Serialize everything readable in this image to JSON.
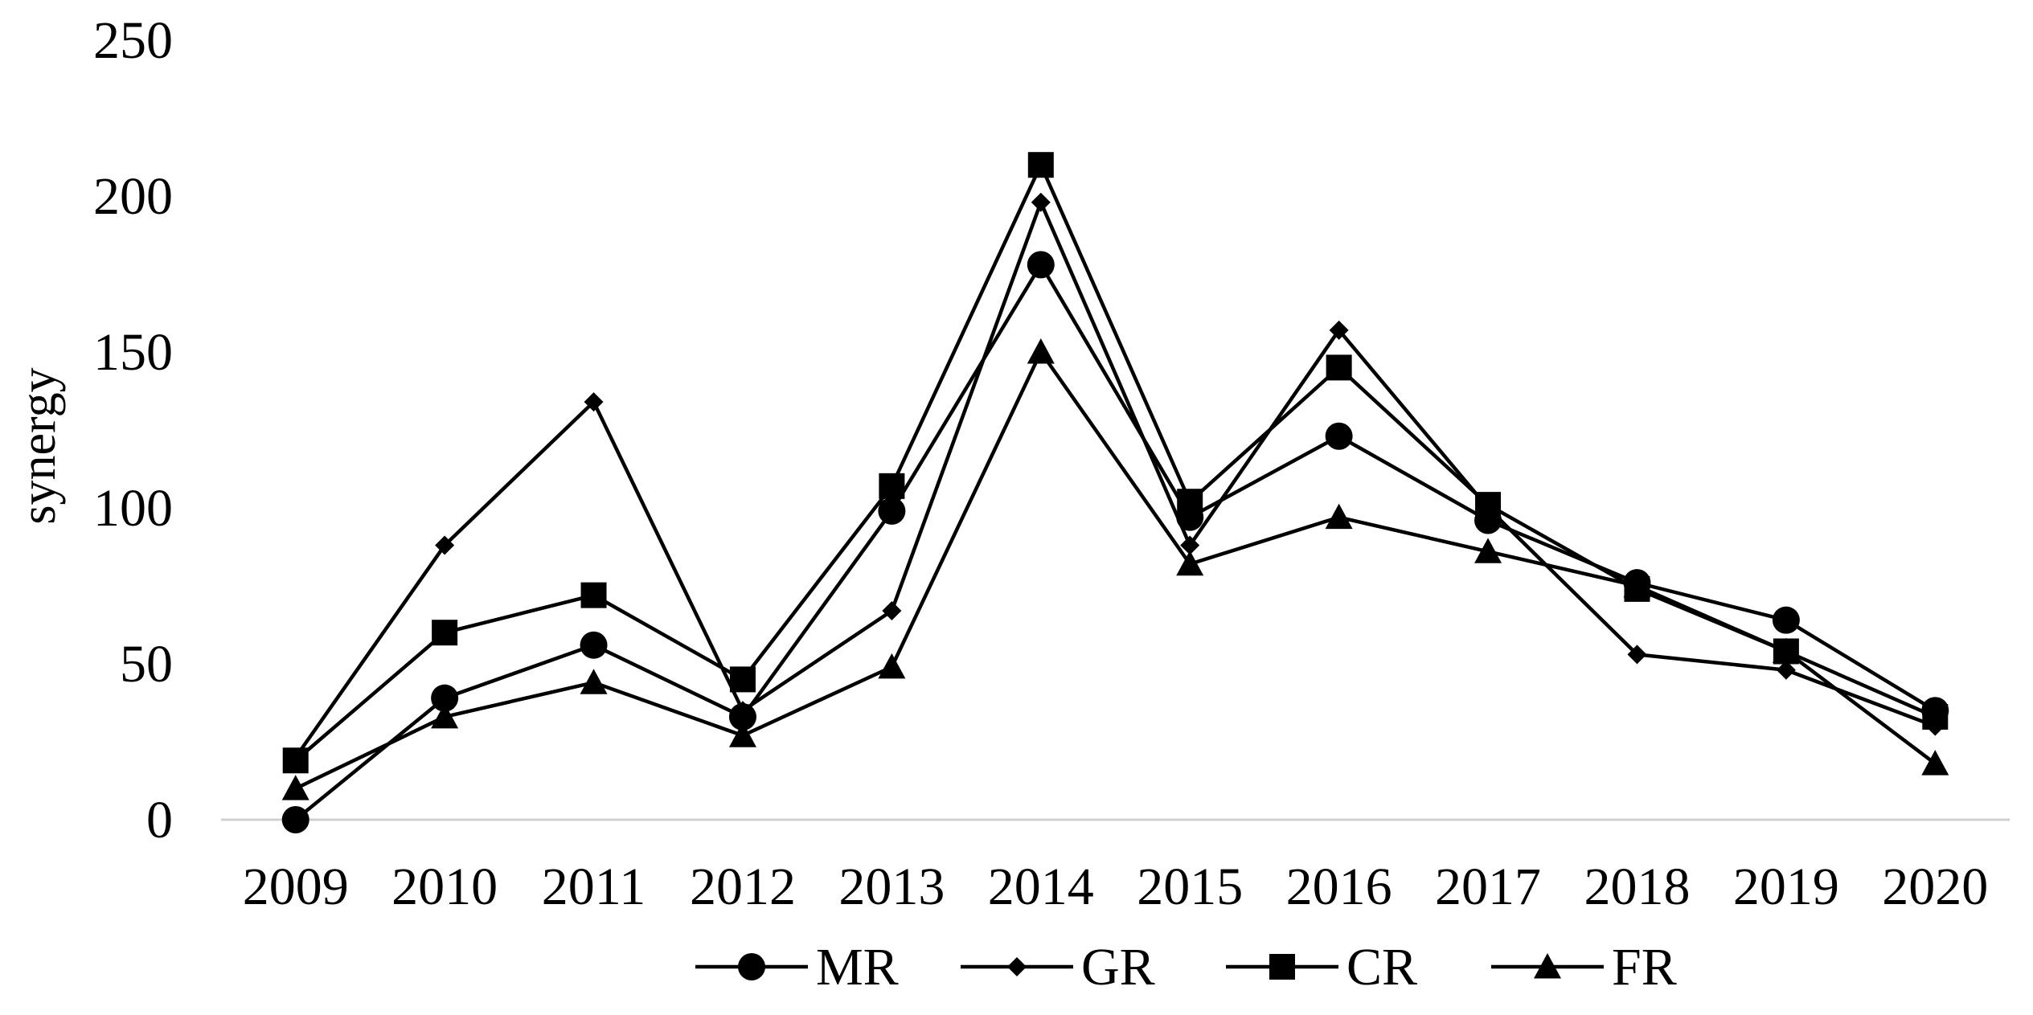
{
  "chart_data": {
    "type": "line",
    "title": "",
    "xlabel": "",
    "ylabel": "synergy",
    "ylim": [
      0,
      250
    ],
    "yticks": [
      "0",
      "50",
      "100",
      "150",
      "200",
      "250"
    ],
    "categories": [
      "2009",
      "2010",
      "2011",
      "2012",
      "2013",
      "2014",
      "2015",
      "2016",
      "2017",
      "2018",
      "2019",
      "2020"
    ],
    "grid": false,
    "legend_position": "bottom",
    "line_color": "#000000",
    "series": [
      {
        "name": "MR",
        "marker": "circle",
        "values": [
          0,
          39,
          56,
          33,
          99,
          178,
          97,
          123,
          96,
          76,
          64,
          35
        ]
      },
      {
        "name": "GR",
        "marker": "diamond",
        "values": [
          20,
          88,
          134,
          35,
          67,
          198,
          88,
          157,
          100,
          53,
          48,
          30
        ]
      },
      {
        "name": "CR",
        "marker": "square",
        "values": [
          19,
          60,
          72,
          45,
          107,
          210,
          102,
          145,
          101,
          74,
          54,
          33
        ]
      },
      {
        "name": "FR",
        "marker": "triangle",
        "values": [
          10,
          33,
          44,
          27,
          49,
          150,
          82,
          97,
          86,
          75,
          54,
          18
        ]
      }
    ]
  }
}
